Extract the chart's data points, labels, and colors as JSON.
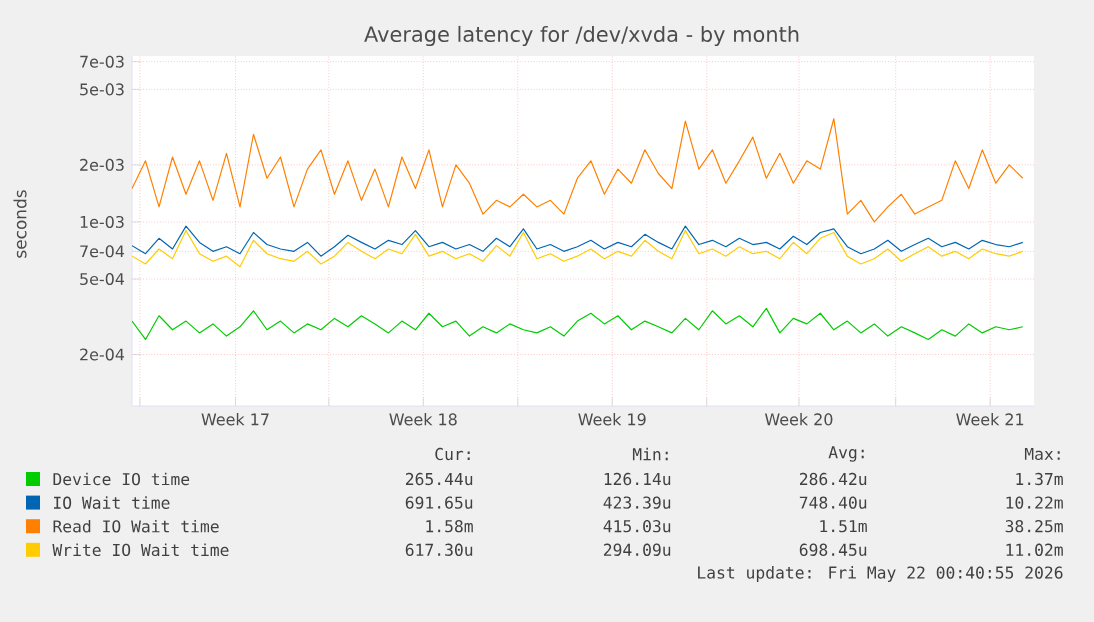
{
  "chart_data": {
    "type": "line",
    "title": "Average latency for /dev/xvda - by month",
    "ylabel": "seconds",
    "log": true,
    "grid": true,
    "legend": "bottom",
    "x": [
      "2026-04-18T14:00",
      "2026-04-19T02:00",
      "2026-04-19T14:00",
      "2026-04-20T02:00",
      "2026-04-20T14:00",
      "2026-04-21T02:00",
      "2026-04-21T14:00",
      "2026-04-22T02:00",
      "2026-04-22T14:00",
      "2026-04-23T02:00",
      "2026-04-23T14:00",
      "2026-04-24T02:00",
      "2026-04-24T14:00",
      "2026-04-25T02:00",
      "2026-04-25T14:00",
      "2026-04-26T02:00",
      "2026-04-26T14:00",
      "2026-04-27T02:00",
      "2026-04-27T14:00",
      "2026-04-28T02:00",
      "2026-04-28T14:00",
      "2026-04-29T02:00",
      "2026-04-29T14:00",
      "2026-04-30T02:00",
      "2026-04-30T14:00",
      "2026-05-01T02:00",
      "2026-05-01T14:00",
      "2026-05-02T02:00",
      "2026-05-02T14:00",
      "2026-05-03T02:00",
      "2026-05-03T14:00",
      "2026-05-04T02:00",
      "2026-05-04T14:00",
      "2026-05-05T02:00",
      "2026-05-05T14:00",
      "2026-05-06T02:00",
      "2026-05-06T14:00",
      "2026-05-07T02:00",
      "2026-05-07T14:00",
      "2026-05-08T02:00",
      "2026-05-08T14:00",
      "2026-05-09T02:00",
      "2026-05-09T14:00",
      "2026-05-10T02:00",
      "2026-05-10T14:00",
      "2026-05-11T02:00",
      "2026-05-11T14:00",
      "2026-05-12T02:00",
      "2026-05-12T14:00",
      "2026-05-13T02:00",
      "2026-05-13T14:00",
      "2026-05-14T02:00",
      "2026-05-14T14:00",
      "2026-05-15T02:00",
      "2026-05-15T14:00",
      "2026-05-16T02:00",
      "2026-05-16T14:00",
      "2026-05-17T02:00",
      "2026-05-17T14:00",
      "2026-05-18T02:00",
      "2026-05-18T14:00",
      "2026-05-19T02:00",
      "2026-05-19T14:00",
      "2026-05-20T02:00",
      "2026-05-20T14:00",
      "2026-05-21T02:00",
      "2026-05-21T14:00"
    ],
    "xlim": [
      "2026-04-18T14:00",
      "2026-05-22T00:00"
    ],
    "xticks": [
      {
        "value": "2026-04-18T21:00",
        "label": null
      },
      {
        "value": "2026-04-22T10:00",
        "label": "Week 17"
      },
      {
        "value": "2026-04-25T21:00",
        "label": null
      },
      {
        "value": "2026-04-29T09:00",
        "label": "Week 18"
      },
      {
        "value": "2026-05-02T21:00",
        "label": null
      },
      {
        "value": "2026-05-06T09:00",
        "label": "Week 19"
      },
      {
        "value": "2026-05-09T21:00",
        "label": null
      },
      {
        "value": "2026-05-13T07:00",
        "label": "Week 20"
      },
      {
        "value": "2026-05-16T21:00",
        "label": null
      },
      {
        "value": "2026-05-20T09:00",
        "label": "Week 21"
      }
    ],
    "ylim": [
      0.000107,
      0.0075
    ],
    "yticks": [
      {
        "value": 0.0002,
        "label": "2e-04"
      },
      {
        "value": 0.0005,
        "label": "5e-04"
      },
      {
        "value": 0.0007,
        "label": "7e-04"
      },
      {
        "value": 0.001,
        "label": "1e-03"
      },
      {
        "value": 0.002,
        "label": "2e-03"
      },
      {
        "value": 0.005,
        "label": "5e-03"
      },
      {
        "value": 0.007,
        "label": "7e-03"
      }
    ],
    "series": [
      {
        "name": "Device IO time",
        "color": "#00cc00",
        "values": [
          0.0003,
          0.00024,
          0.00032,
          0.00027,
          0.0003,
          0.00026,
          0.00029,
          0.00025,
          0.00028,
          0.00034,
          0.00027,
          0.0003,
          0.00026,
          0.00029,
          0.00027,
          0.00031,
          0.00028,
          0.00032,
          0.00029,
          0.00026,
          0.0003,
          0.00027,
          0.00033,
          0.00028,
          0.0003,
          0.00025,
          0.00028,
          0.00026,
          0.00029,
          0.00027,
          0.00026,
          0.00028,
          0.00025,
          0.0003,
          0.00033,
          0.00029,
          0.00032,
          0.00027,
          0.0003,
          0.00028,
          0.00026,
          0.00031,
          0.00027,
          0.00034,
          0.00029,
          0.00032,
          0.00028,
          0.00035,
          0.00026,
          0.00031,
          0.00029,
          0.00033,
          0.00027,
          0.0003,
          0.00026,
          0.00029,
          0.00025,
          0.00028,
          0.00026,
          0.00024,
          0.00027,
          0.00025,
          0.00029,
          0.00026,
          0.00028,
          0.00027,
          0.00028
        ]
      },
      {
        "name": "IO Wait time",
        "color": "#0066b3",
        "values": [
          0.00075,
          0.00068,
          0.00082,
          0.00072,
          0.00095,
          0.00078,
          0.0007,
          0.00074,
          0.00068,
          0.00088,
          0.00076,
          0.00072,
          0.0007,
          0.00078,
          0.00066,
          0.00074,
          0.00085,
          0.00078,
          0.00072,
          0.0008,
          0.00076,
          0.0009,
          0.00074,
          0.00078,
          0.00072,
          0.00076,
          0.0007,
          0.00082,
          0.00074,
          0.00092,
          0.00072,
          0.00076,
          0.0007,
          0.00074,
          0.0008,
          0.00072,
          0.00078,
          0.00074,
          0.00086,
          0.00078,
          0.00072,
          0.00095,
          0.00076,
          0.0008,
          0.00074,
          0.00082,
          0.00076,
          0.00078,
          0.00072,
          0.00084,
          0.00076,
          0.00088,
          0.00092,
          0.00074,
          0.00068,
          0.00072,
          0.0008,
          0.0007,
          0.00076,
          0.00082,
          0.00074,
          0.00078,
          0.00072,
          0.0008,
          0.00076,
          0.00074,
          0.00078
        ]
      },
      {
        "name": "Read IO Wait time",
        "color": "#ff8000",
        "values": [
          0.0015,
          0.0021,
          0.0012,
          0.0022,
          0.0014,
          0.0021,
          0.0013,
          0.0023,
          0.0012,
          0.0029,
          0.0017,
          0.0022,
          0.0012,
          0.0019,
          0.0024,
          0.0014,
          0.0021,
          0.0013,
          0.0019,
          0.0012,
          0.0022,
          0.0015,
          0.0024,
          0.0012,
          0.002,
          0.0016,
          0.0011,
          0.0013,
          0.0012,
          0.0014,
          0.0012,
          0.0013,
          0.0011,
          0.0017,
          0.0021,
          0.0014,
          0.0019,
          0.0016,
          0.0024,
          0.0018,
          0.0015,
          0.0034,
          0.0019,
          0.0024,
          0.0016,
          0.0021,
          0.0028,
          0.0017,
          0.0023,
          0.0016,
          0.0021,
          0.0019,
          0.0035,
          0.0011,
          0.0013,
          0.001,
          0.0012,
          0.0014,
          0.0011,
          0.0012,
          0.0013,
          0.0021,
          0.0015,
          0.0024,
          0.0016,
          0.002,
          0.0017
        ]
      },
      {
        "name": "Write IO Wait time",
        "color": "#ffcc00",
        "values": [
          0.00066,
          0.0006,
          0.00072,
          0.00064,
          0.0009,
          0.00068,
          0.00062,
          0.00066,
          0.00058,
          0.0008,
          0.00068,
          0.00064,
          0.00062,
          0.0007,
          0.0006,
          0.00066,
          0.00078,
          0.0007,
          0.00064,
          0.00072,
          0.00068,
          0.00086,
          0.00066,
          0.0007,
          0.00064,
          0.00068,
          0.00062,
          0.00075,
          0.00066,
          0.00088,
          0.00064,
          0.00068,
          0.00062,
          0.00066,
          0.00072,
          0.00064,
          0.0007,
          0.00066,
          0.0008,
          0.0007,
          0.00064,
          0.0009,
          0.00068,
          0.00072,
          0.00066,
          0.00074,
          0.00068,
          0.0007,
          0.00064,
          0.00078,
          0.00068,
          0.00082,
          0.00088,
          0.00066,
          0.0006,
          0.00064,
          0.00072,
          0.00062,
          0.00068,
          0.00074,
          0.00066,
          0.0007,
          0.00064,
          0.00072,
          0.00068,
          0.00066,
          0.0007
        ]
      }
    ],
    "annotations": [
      "Cur:",
      "Min:",
      "Avg:",
      "Max:",
      "265.44u",
      "126.14u",
      "286.42u",
      "1.37m",
      "691.65u",
      "423.39u",
      "748.40u",
      "10.22m",
      "1.58m",
      "415.03u",
      "1.51m",
      "38.25m",
      "617.30u",
      "294.09u",
      "698.45u",
      "11.02m",
      "Last update: Fri May 22 00:40:55 2026"
    ]
  }
}
